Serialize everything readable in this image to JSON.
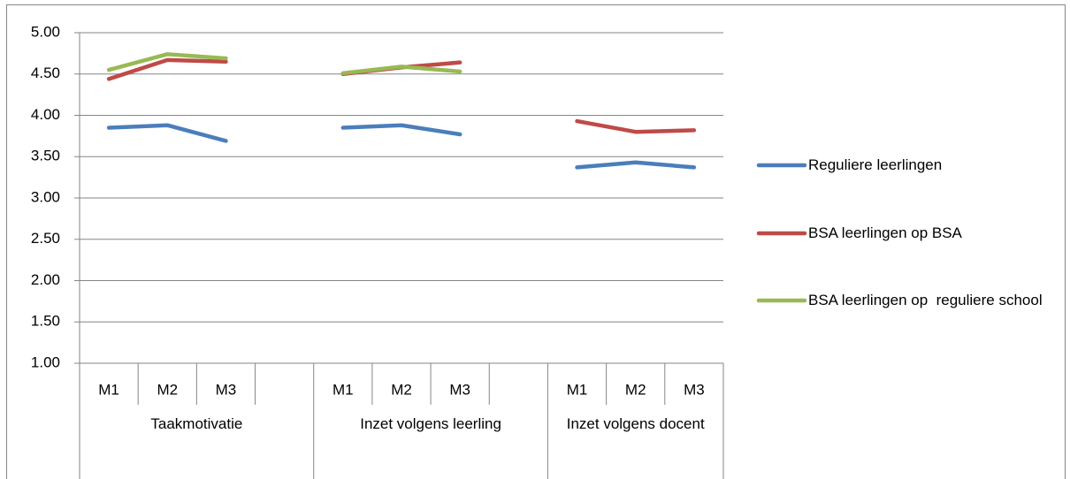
{
  "chart_data": {
    "type": "line",
    "categories": [
      "M1",
      "M2",
      "M3",
      null,
      "M1",
      "M2",
      "M3",
      null,
      "M1",
      "M2",
      "M3"
    ],
    "groups": [
      "Taakmotivatie",
      "Inzet volgens leerling",
      "Inzet volgens docent"
    ],
    "series": [
      {
        "name": "Reguliere leerlingen",
        "color": "#4a7ebb",
        "values": [
          3.85,
          3.88,
          3.69,
          null,
          3.85,
          3.88,
          3.77,
          null,
          3.37,
          3.43,
          3.37
        ]
      },
      {
        "name": "BSA leerlingen op BSA",
        "color": "#be4b48",
        "values": [
          4.44,
          4.67,
          4.65,
          null,
          4.5,
          4.58,
          4.64,
          null,
          3.93,
          3.8,
          3.82
        ]
      },
      {
        "name": "BSA leerlingen op  reguliere school",
        "color": "#98b954",
        "values": [
          4.55,
          4.74,
          4.69,
          null,
          4.51,
          4.59,
          4.53,
          null,
          null,
          null,
          null
        ]
      }
    ],
    "ylim": [
      1,
      5
    ],
    "yticks": [
      {
        "value": 1,
        "label": "1.00"
      },
      {
        "value": 1.5,
        "label": "1.50"
      },
      {
        "value": 2,
        "label": "2.00"
      },
      {
        "value": 2.5,
        "label": "2.50"
      },
      {
        "value": 3,
        "label": "3.00"
      },
      {
        "value": 3.5,
        "label": "3.50"
      },
      {
        "value": 4,
        "label": "4.00"
      },
      {
        "value": 4.5,
        "label": "4.50"
      },
      {
        "value": 5,
        "label": "5.00"
      }
    ],
    "grid": true,
    "legend": "right"
  }
}
